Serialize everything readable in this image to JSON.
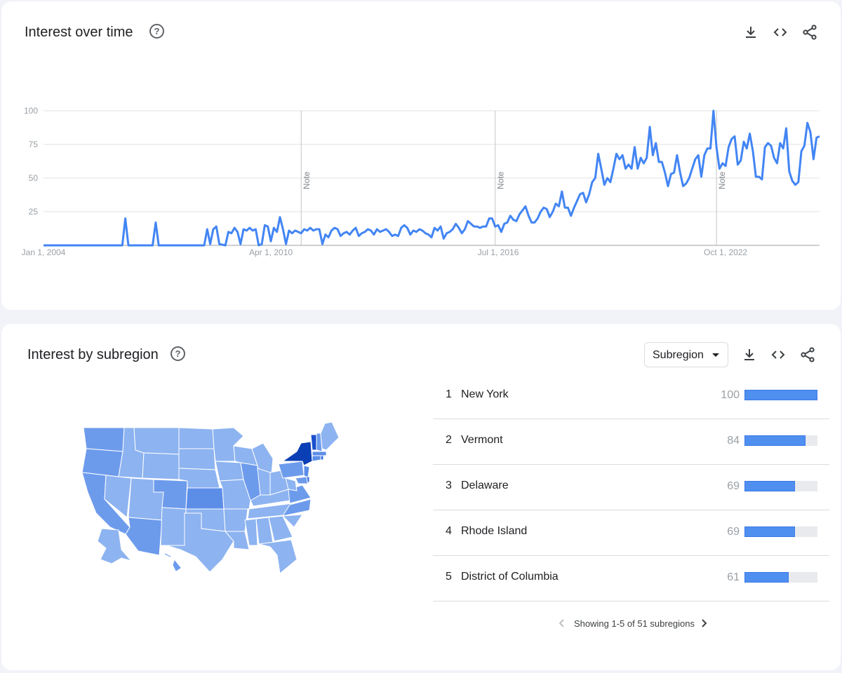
{
  "time_card": {
    "title": "Interest over time",
    "help_icon": "help-circle-icon",
    "actions": [
      "download-icon",
      "embed-code-icon",
      "share-icon"
    ],
    "notes": [
      "Note",
      "Note",
      "Note"
    ]
  },
  "chart_data": {
    "type": "line",
    "title": "Interest over time",
    "xlabel": "",
    "ylabel": "",
    "x_ticks": [
      "Jan 1, 2004",
      "Apr 1, 2010",
      "Jul 1, 2016",
      "Oct 1, 2022"
    ],
    "y_ticks": [
      "100",
      "75",
      "50",
      "25"
    ],
    "ylim": [
      0,
      100
    ],
    "xlim": [
      "2004-01",
      "2025-05"
    ],
    "grid": true,
    "line_color": "#4285f4",
    "annotations": [
      {
        "label": "Note",
        "x": "2011-02"
      },
      {
        "label": "Note",
        "x": "2016-06"
      },
      {
        "label": "Note",
        "x": "2022-07"
      }
    ],
    "points": [
      [
        "2004-01",
        0
      ],
      [
        "2006-03",
        0
      ],
      [
        "2006-04",
        20
      ],
      [
        "2006-05",
        0
      ],
      [
        "2007-01",
        0
      ],
      [
        "2007-02",
        17
      ],
      [
        "2007-03",
        0
      ],
      [
        "2008-06",
        0
      ],
      [
        "2008-07",
        12
      ],
      [
        "2008-08",
        1
      ],
      [
        "2008-09",
        12
      ],
      [
        "2008-10",
        14
      ],
      [
        "2008-11",
        1
      ],
      [
        "2009-01",
        0
      ],
      [
        "2009-02",
        10
      ],
      [
        "2009-03",
        9
      ],
      [
        "2009-04",
        13
      ],
      [
        "2009-05",
        10
      ],
      [
        "2009-06",
        1
      ],
      [
        "2009-07",
        12
      ],
      [
        "2009-08",
        11
      ],
      [
        "2009-09",
        13
      ],
      [
        "2009-10",
        11
      ],
      [
        "2009-11",
        12
      ],
      [
        "2009-12",
        0
      ],
      [
        "2010-01",
        1
      ],
      [
        "2010-02",
        15
      ],
      [
        "2010-03",
        14
      ],
      [
        "2010-04",
        3
      ],
      [
        "2010-05",
        13
      ],
      [
        "2010-06",
        10
      ],
      [
        "2010-07",
        21
      ],
      [
        "2010-08",
        12
      ],
      [
        "2010-09",
        1
      ],
      [
        "2010-10",
        11
      ],
      [
        "2010-11",
        9
      ],
      [
        "2010-12",
        11
      ],
      [
        "2011-01",
        10
      ],
      [
        "2011-02",
        9
      ],
      [
        "2011-03",
        12
      ],
      [
        "2011-04",
        11
      ],
      [
        "2011-05",
        13
      ],
      [
        "2011-06",
        11
      ],
      [
        "2011-07",
        12
      ],
      [
        "2011-08",
        12
      ],
      [
        "2011-09",
        1
      ],
      [
        "2011-10",
        8
      ],
      [
        "2011-11",
        6
      ],
      [
        "2011-12",
        11
      ],
      [
        "2012-01",
        13
      ],
      [
        "2012-02",
        12
      ],
      [
        "2012-03",
        7
      ],
      [
        "2012-04",
        9
      ],
      [
        "2012-05",
        10
      ],
      [
        "2012-06",
        8
      ],
      [
        "2012-07",
        11
      ],
      [
        "2012-08",
        13
      ],
      [
        "2012-09",
        7
      ],
      [
        "2012-10",
        9
      ],
      [
        "2012-11",
        10
      ],
      [
        "2012-12",
        12
      ],
      [
        "2013-01",
        11
      ],
      [
        "2013-02",
        8
      ],
      [
        "2013-03",
        12
      ],
      [
        "2013-04",
        10
      ],
      [
        "2013-05",
        11
      ],
      [
        "2013-06",
        12
      ],
      [
        "2013-07",
        10
      ],
      [
        "2013-08",
        7
      ],
      [
        "2013-09",
        8
      ],
      [
        "2013-10",
        7
      ],
      [
        "2013-11",
        13
      ],
      [
        "2013-12",
        15
      ],
      [
        "2014-01",
        13
      ],
      [
        "2014-02",
        8
      ],
      [
        "2014-03",
        11
      ],
      [
        "2014-04",
        10
      ],
      [
        "2014-05",
        12
      ],
      [
        "2014-06",
        11
      ],
      [
        "2014-07",
        9
      ],
      [
        "2014-08",
        8
      ],
      [
        "2014-09",
        6
      ],
      [
        "2014-10",
        13
      ],
      [
        "2014-11",
        11
      ],
      [
        "2014-12",
        14
      ],
      [
        "2015-01",
        5
      ],
      [
        "2015-02",
        9
      ],
      [
        "2015-03",
        10
      ],
      [
        "2015-04",
        12
      ],
      [
        "2015-05",
        16
      ],
      [
        "2015-06",
        13
      ],
      [
        "2015-07",
        9
      ],
      [
        "2015-08",
        12
      ],
      [
        "2015-09",
        18
      ],
      [
        "2015-10",
        16
      ],
      [
        "2015-11",
        14
      ],
      [
        "2015-12",
        14
      ],
      [
        "2016-01",
        13
      ],
      [
        "2016-02",
        14
      ],
      [
        "2016-03",
        14
      ],
      [
        "2016-04",
        20
      ],
      [
        "2016-05",
        20
      ],
      [
        "2016-06",
        14
      ],
      [
        "2016-07",
        15
      ],
      [
        "2016-08",
        10
      ],
      [
        "2016-09",
        16
      ],
      [
        "2016-10",
        17
      ],
      [
        "2016-11",
        22
      ],
      [
        "2016-12",
        19
      ],
      [
        "2017-01",
        18
      ],
      [
        "2017-02",
        23
      ],
      [
        "2017-03",
        26
      ],
      [
        "2017-04",
        29
      ],
      [
        "2017-05",
        22
      ],
      [
        "2017-06",
        17
      ],
      [
        "2017-07",
        17
      ],
      [
        "2017-08",
        20
      ],
      [
        "2017-09",
        25
      ],
      [
        "2017-10",
        28
      ],
      [
        "2017-11",
        27
      ],
      [
        "2017-12",
        21
      ],
      [
        "2018-01",
        25
      ],
      [
        "2018-02",
        31
      ],
      [
        "2018-03",
        29
      ],
      [
        "2018-04",
        40
      ],
      [
        "2018-05",
        28
      ],
      [
        "2018-06",
        28
      ],
      [
        "2018-07",
        22
      ],
      [
        "2018-08",
        28
      ],
      [
        "2018-09",
        33
      ],
      [
        "2018-10",
        38
      ],
      [
        "2018-11",
        39
      ],
      [
        "2018-12",
        32
      ],
      [
        "2019-01",
        38
      ],
      [
        "2019-02",
        47
      ],
      [
        "2019-03",
        50
      ],
      [
        "2019-04",
        68
      ],
      [
        "2019-05",
        57
      ],
      [
        "2019-06",
        45
      ],
      [
        "2019-07",
        50
      ],
      [
        "2019-08",
        47
      ],
      [
        "2019-09",
        57
      ],
      [
        "2019-10",
        68
      ],
      [
        "2019-11",
        64
      ],
      [
        "2019-12",
        67
      ],
      [
        "2020-01",
        57
      ],
      [
        "2020-02",
        60
      ],
      [
        "2020-03",
        57
      ],
      [
        "2020-04",
        73
      ],
      [
        "2020-05",
        57
      ],
      [
        "2020-06",
        65
      ],
      [
        "2020-07",
        61
      ],
      [
        "2020-08",
        65
      ],
      [
        "2020-09",
        88
      ],
      [
        "2020-10",
        67
      ],
      [
        "2020-11",
        76
      ],
      [
        "2020-12",
        62
      ],
      [
        "2021-01",
        62
      ],
      [
        "2021-02",
        54
      ],
      [
        "2021-03",
        44
      ],
      [
        "2021-04",
        53
      ],
      [
        "2021-05",
        54
      ],
      [
        "2021-06",
        67
      ],
      [
        "2021-07",
        54
      ],
      [
        "2021-08",
        44
      ],
      [
        "2021-09",
        46
      ],
      [
        "2021-10",
        50
      ],
      [
        "2021-11",
        57
      ],
      [
        "2021-12",
        64
      ],
      [
        "2022-01",
        67
      ],
      [
        "2022-02",
        51
      ],
      [
        "2022-03",
        67
      ],
      [
        "2022-04",
        72
      ],
      [
        "2022-05",
        72
      ],
      [
        "2022-06",
        100
      ],
      [
        "2022-07",
        73
      ],
      [
        "2022-08",
        57
      ],
      [
        "2022-09",
        61
      ],
      [
        "2022-10",
        59
      ],
      [
        "2022-11",
        73
      ],
      [
        "2022-12",
        79
      ],
      [
        "2023-01",
        81
      ],
      [
        "2023-02",
        60
      ],
      [
        "2023-03",
        63
      ],
      [
        "2023-04",
        77
      ],
      [
        "2023-05",
        72
      ],
      [
        "2023-06",
        83
      ],
      [
        "2023-07",
        70
      ],
      [
        "2023-08",
        51
      ],
      [
        "2023-09",
        51
      ],
      [
        "2023-10",
        49
      ],
      [
        "2023-11",
        73
      ],
      [
        "2023-12",
        76
      ],
      [
        "2024-01",
        74
      ],
      [
        "2024-02",
        65
      ],
      [
        "2024-03",
        61
      ],
      [
        "2024-04",
        76
      ],
      [
        "2024-05",
        72
      ],
      [
        "2024-06",
        87
      ],
      [
        "2024-07",
        55
      ],
      [
        "2024-08",
        48
      ],
      [
        "2024-09",
        45
      ],
      [
        "2024-10",
        47
      ],
      [
        "2024-11",
        70
      ],
      [
        "2024-12",
        74
      ],
      [
        "2025-01",
        91
      ],
      [
        "2025-02",
        84
      ],
      [
        "2025-03",
        64
      ],
      [
        "2025-04",
        80
      ],
      [
        "2025-05",
        81
      ]
    ]
  },
  "region_card": {
    "title": "Interest by subregion",
    "help_icon": "help-circle-icon",
    "dropdown": {
      "selected": "Subregion"
    },
    "actions": [
      "download-icon",
      "embed-code-icon",
      "share-icon"
    ],
    "rows": [
      {
        "rank": "1",
        "name": "New York",
        "value": "100",
        "fill": 1.0
      },
      {
        "rank": "2",
        "name": "Vermont",
        "value": "84",
        "fill": 0.84
      },
      {
        "rank": "3",
        "name": "Delaware",
        "value": "69",
        "fill": 0.69
      },
      {
        "rank": "4",
        "name": "Rhode Island",
        "value": "69",
        "fill": 0.69
      },
      {
        "rank": "5",
        "name": "District of Columbia",
        "value": "61",
        "fill": 0.61
      }
    ],
    "pager": {
      "text": "Showing 1-5 of 51 subregions",
      "prev_icon": "chevron-left-icon",
      "next_icon": "chevron-right-icon"
    },
    "map_colors": {
      "light": "#8db3f0",
      "medium": "#6d9bec",
      "dark": "#1a4fce",
      "darkest": "#0b3fb5"
    }
  }
}
